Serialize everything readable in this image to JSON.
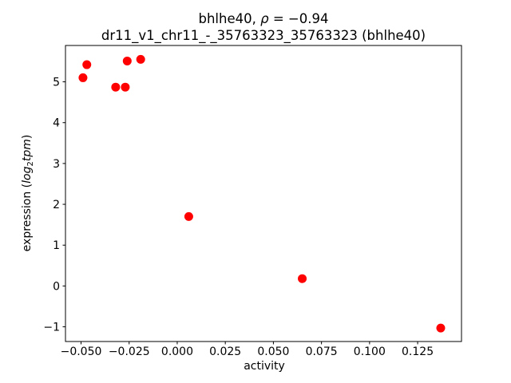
{
  "chart_data": {
    "type": "scatter",
    "title": "bhlhe40, ρ = −0.94",
    "title_parts": {
      "prefix": "bhlhe40, ",
      "rho": "ρ",
      "rest": " = −0.94"
    },
    "subtitle": "dr11_v1_chr11_-_35763323_35763323 (bhlhe40)",
    "rho": -0.94,
    "gene": "bhlhe40",
    "xlabel": "activity",
    "ylabel": "expression (log2tpm)",
    "ylabel_parts": {
      "prefix": "expression (",
      "log": "log",
      "sub": "2",
      "var": "tpm",
      "suffix": ")"
    },
    "xlim": [
      -0.0581,
      0.1478
    ],
    "ylim": [
      -1.36,
      5.89
    ],
    "xticks": [
      -0.05,
      -0.025,
      0.0,
      0.025,
      0.05,
      0.075,
      0.1,
      0.125
    ],
    "xtick_labels": [
      "−0.050",
      "−0.025",
      "0.000",
      "0.025",
      "0.050",
      "0.075",
      "0.100",
      "0.125"
    ],
    "yticks": [
      -1,
      0,
      1,
      2,
      3,
      4,
      5
    ],
    "ytick_labels": [
      "−1",
      "0",
      "1",
      "2",
      "3",
      "4",
      "5"
    ],
    "points": [
      {
        "x": -0.049,
        "y": 5.1
      },
      {
        "x": -0.047,
        "y": 5.42
      },
      {
        "x": -0.032,
        "y": 4.87
      },
      {
        "x": -0.027,
        "y": 4.87
      },
      {
        "x": -0.026,
        "y": 5.51
      },
      {
        "x": -0.019,
        "y": 5.55
      },
      {
        "x": 0.006,
        "y": 1.7
      },
      {
        "x": 0.065,
        "y": 0.18
      },
      {
        "x": 0.137,
        "y": -1.03
      }
    ],
    "marker_color": "#ff0000",
    "marker_radius_px": 5.5,
    "axis_color": "#000000",
    "background_color": "#ffffff",
    "grid": false,
    "legend_position": "none"
  }
}
